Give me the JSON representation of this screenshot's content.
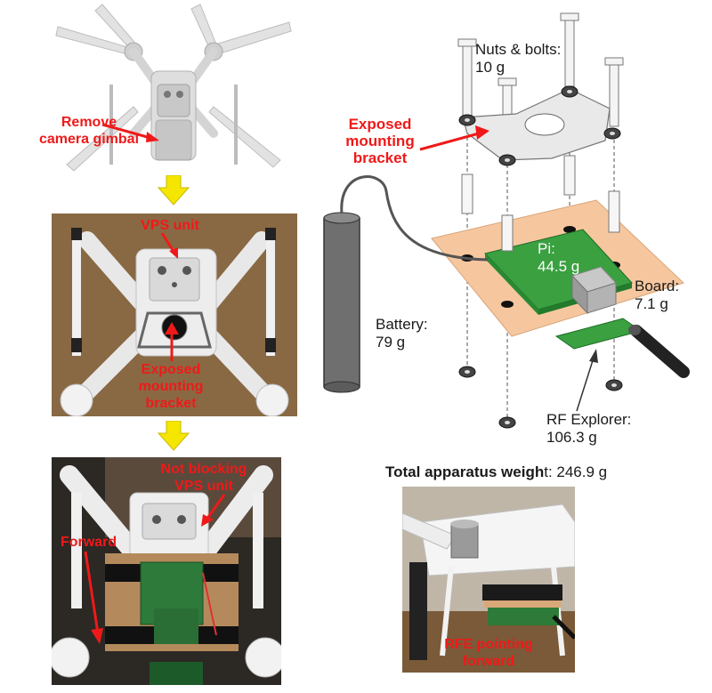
{
  "colors": {
    "label_red": "#f01919",
    "arrow_yellow": "#f5e600",
    "board_tan": "#f6c79f",
    "pcb_green": "#3aa040",
    "wood_panel": "#8a6a4a"
  },
  "drone_top": {
    "label": "Remove camera gimbal",
    "label_line1": "Remove",
    "label_line2": "camera gimbal"
  },
  "photo_middle": {
    "vps_label": "VPS unit",
    "bracket_line1": "Exposed",
    "bracket_line2": "mounting",
    "bracket_line3": "bracket"
  },
  "photo_bottom": {
    "not_blocking_line1": "Not blocking",
    "not_blocking_line2": "VPS unit",
    "forward_label": "Forward"
  },
  "diagram": {
    "nuts_line1": "Nuts & bolts:",
    "nuts_line2": "10 g",
    "bracket_line1": "Exposed",
    "bracket_line2": "mounting",
    "bracket_line3": "bracket",
    "pi_line1": "Pi:",
    "pi_line2": "44.5 g",
    "board_line1": "Board:",
    "board_line2": "7.1 g",
    "battery_line1": "Battery:",
    "battery_line2": "79 g",
    "rf_line1": "RF Explorer:",
    "rf_line2": "106.3 g"
  },
  "total": {
    "bold": "Total apparatus weigh",
    "rest": "t: 246.9 g"
  },
  "photo_right": {
    "rfe_line1": "RFE pointing",
    "rfe_line2": "forward"
  },
  "icons": [
    "down-arrow-icon",
    "pointer-arrow-icon",
    "bolt-icon",
    "washer-icon",
    "spacer-icon"
  ]
}
